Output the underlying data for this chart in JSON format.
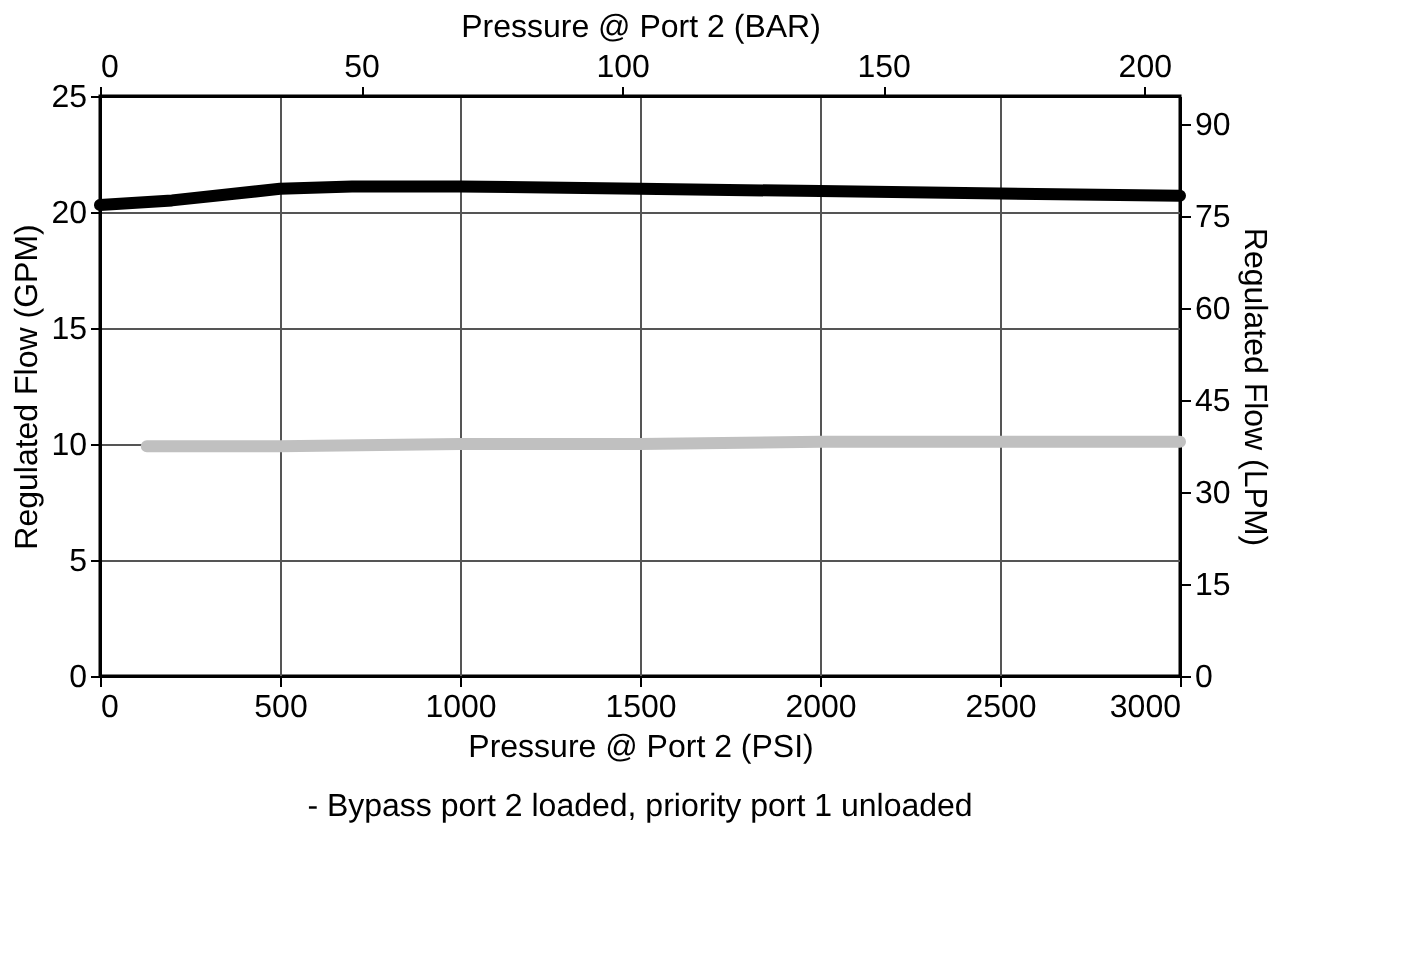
{
  "chart_data": {
    "type": "line",
    "xlabel": "Pressure @ Port 2 (PSI)",
    "ylabel": "Regulated Flow (GPM)",
    "y2label": "Regulated Flow (LPM)",
    "x2label": "Pressure @ Port 2 (BAR)",
    "annotations": [
      "- Bypass port 2 loaded, priority port 1 unloaded"
    ],
    "xlim": [
      0,
      3000
    ],
    "xticks": [
      0,
      500,
      1000,
      1500,
      2000,
      2500,
      3000
    ],
    "ylim": [
      0,
      25
    ],
    "yticks": [
      0,
      5,
      10,
      15,
      20,
      25
    ],
    "x2lim": [
      0,
      206.84
    ],
    "x2ticks": [
      0,
      50,
      100,
      150,
      200
    ],
    "y2lim": [
      0,
      94.64
    ],
    "y2ticks": [
      0,
      15,
      30,
      45,
      60,
      75,
      90
    ],
    "grid": true,
    "marker": "none",
    "line_style": "solid",
    "series": [
      {
        "color": "#000000",
        "x": [
          0,
          200,
          500,
          700,
          1000,
          1500,
          2000,
          2500,
          3000
        ],
        "values": [
          20.3,
          20.5,
          21.0,
          21.1,
          21.1,
          21.0,
          20.9,
          20.8,
          20.7
        ]
      },
      {
        "color": "#c0c0c0",
        "x": [
          130,
          500,
          1000,
          1500,
          2000,
          2500,
          3000
        ],
        "values": [
          9.9,
          9.9,
          10.0,
          10.0,
          10.1,
          10.1,
          10.1
        ]
      }
    ]
  }
}
